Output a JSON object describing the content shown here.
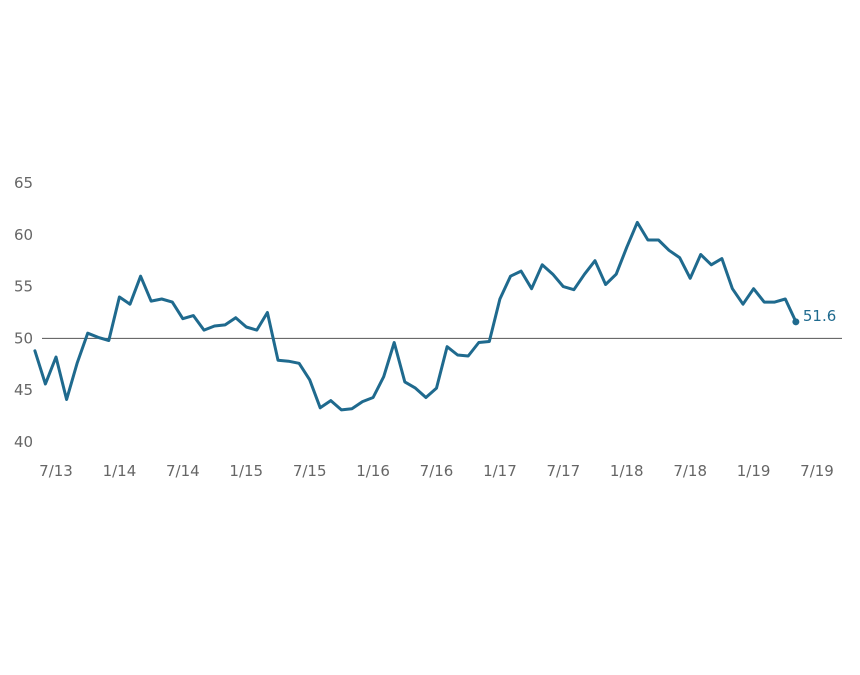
{
  "chart_data": {
    "type": "line",
    "title": "",
    "xlabel": "",
    "ylabel": "",
    "ylim": [
      40,
      65
    ],
    "xlim": [
      "2013-07",
      "2019-07"
    ],
    "grid": false,
    "legend": "none",
    "reference_line": {
      "value": 50,
      "color": "#555555"
    },
    "line_color": "#1f6a8e",
    "y_ticks": [
      {
        "value": 40,
        "label": "40"
      },
      {
        "value": 45,
        "label": "45"
      },
      {
        "value": 50,
        "label": "50"
      },
      {
        "value": 55,
        "label": "55"
      },
      {
        "value": 60,
        "label": "60"
      },
      {
        "value": 65,
        "label": "65"
      }
    ],
    "x_ticks": [
      {
        "date": "2013-07",
        "label": "7/13"
      },
      {
        "date": "2014-01",
        "label": "1/14"
      },
      {
        "date": "2014-07",
        "label": "7/14"
      },
      {
        "date": "2015-01",
        "label": "1/15"
      },
      {
        "date": "2015-07",
        "label": "7/15"
      },
      {
        "date": "2016-01",
        "label": "1/16"
      },
      {
        "date": "2016-07",
        "label": "7/16"
      },
      {
        "date": "2017-01",
        "label": "1/17"
      },
      {
        "date": "2017-07",
        "label": "7/17"
      },
      {
        "date": "2018-01",
        "label": "1/18"
      },
      {
        "date": "2018-07",
        "label": "7/18"
      },
      {
        "date": "2019-01",
        "label": "1/19"
      },
      {
        "date": "2019-07",
        "label": "7/19"
      }
    ],
    "last_value_label": "51.6",
    "series": [
      {
        "x": [
          "2013-05",
          "2013-06",
          "2013-07",
          "2013-08",
          "2013-09",
          "2013-10",
          "2013-11",
          "2013-12",
          "2014-01",
          "2014-02",
          "2014-03",
          "2014-04",
          "2014-05",
          "2014-06",
          "2014-07",
          "2014-08",
          "2014-09",
          "2014-10",
          "2014-11",
          "2014-12",
          "2015-01",
          "2015-02",
          "2015-03",
          "2015-04",
          "2015-05",
          "2015-06",
          "2015-07",
          "2015-08",
          "2015-09",
          "2015-10",
          "2015-11",
          "2015-12",
          "2016-01",
          "2016-02",
          "2016-03",
          "2016-04",
          "2016-05",
          "2016-06",
          "2016-07",
          "2016-08",
          "2016-09",
          "2016-10",
          "2016-11",
          "2016-12",
          "2017-01",
          "2017-02",
          "2017-03",
          "2017-04",
          "2017-05",
          "2017-06",
          "2017-07",
          "2017-08",
          "2017-09",
          "2017-10",
          "2017-11",
          "2017-12",
          "2018-01",
          "2018-02",
          "2018-03",
          "2018-04",
          "2018-05",
          "2018-06",
          "2018-07",
          "2018-08",
          "2018-09",
          "2018-10",
          "2018-11",
          "2018-12",
          "2019-01",
          "2019-02",
          "2019-03",
          "2019-04",
          "2019-05"
        ],
        "values": [
          48.8,
          45.6,
          48.2,
          44.1,
          47.6,
          50.5,
          50.1,
          49.8,
          54.0,
          53.3,
          56.0,
          53.6,
          53.8,
          53.5,
          51.9,
          52.2,
          50.8,
          51.2,
          51.3,
          52.0,
          51.1,
          50.8,
          52.5,
          47.9,
          47.8,
          47.6,
          46.0,
          43.3,
          44.0,
          43.1,
          43.2,
          43.9,
          44.3,
          46.3,
          49.6,
          45.8,
          45.2,
          44.3,
          45.2,
          49.2,
          48.4,
          48.3,
          49.6,
          49.7,
          53.8,
          56.0,
          56.5,
          54.8,
          57.1,
          56.2,
          55.0,
          54.7,
          56.2,
          57.5,
          55.2,
          56.2,
          58.8,
          61.2,
          59.5,
          59.5,
          58.5,
          57.8,
          55.8,
          58.1,
          57.1,
          57.7,
          54.8,
          53.3,
          54.8,
          53.5,
          53.5,
          53.8,
          51.6
        ]
      }
    ]
  }
}
